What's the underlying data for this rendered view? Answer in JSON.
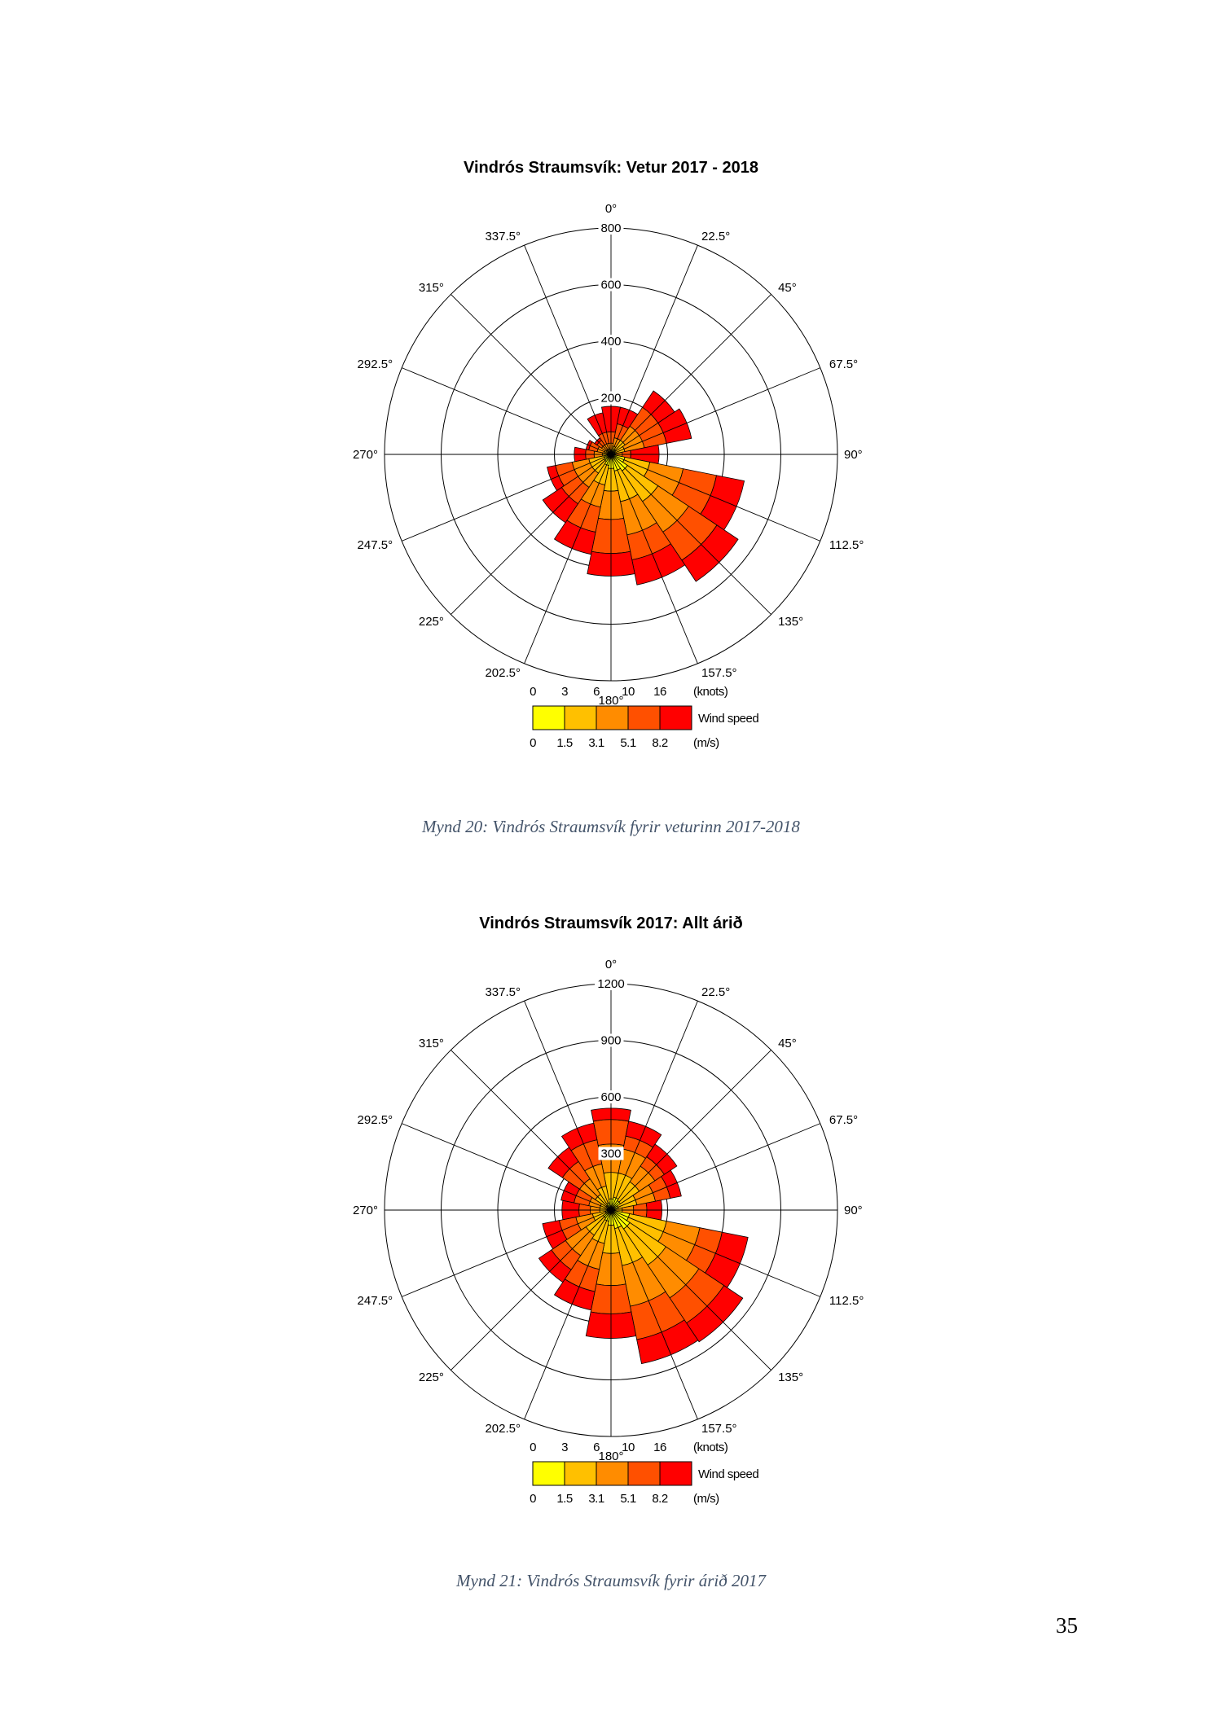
{
  "legend_colors": [
    "#ffff00",
    "#ffc000",
    "#ff8c00",
    "#ff5000",
    "#ff0000"
  ],
  "figures": [
    {
      "caption": "Mynd 20: Vindrós Straumsvík fyrir veturinn 2017-2018",
      "chart_data": {
        "type": "wind_rose",
        "title": "Vindrós Straumsvík: Vetur 2017 - 2018",
        "direction_labels": [
          "0°",
          "22.5°",
          "45°",
          "67.5°",
          "90°",
          "112.5°",
          "135°",
          "157.5°",
          "180°",
          "202.5°",
          "225°",
          "247.5°",
          "270°",
          "292.5°",
          "315°",
          "337.5°"
        ],
        "radial_max": 800,
        "radial_ticks": [
          200,
          400,
          600,
          800
        ],
        "radial_tick_labels": [
          "200",
          "400",
          "600",
          "800"
        ],
        "legend": {
          "title": "Wind speed",
          "knots_label": "(knots)",
          "knots": [
            "0",
            "3",
            "6",
            "10",
            "16"
          ],
          "ms_label": "(m/s)",
          "ms": [
            "0",
            "1.5",
            "3.1",
            "5.1",
            "8.2"
          ]
        },
        "sector_width_deg": 22.5,
        "directions": [
          0,
          22.5,
          45,
          67.5,
          90,
          112.5,
          135,
          157.5,
          180,
          202.5,
          225,
          247.5,
          270,
          292.5,
          315,
          337.5
        ],
        "cumulative_counts": [
          [
            5,
            15,
            40,
            80,
            170
          ],
          [
            10,
            30,
            60,
            110,
            170
          ],
          [
            20,
            60,
            120,
            200,
            270
          ],
          [
            15,
            50,
            120,
            200,
            290
          ],
          [
            5,
            15,
            40,
            70,
            170
          ],
          [
            50,
            140,
            260,
            380,
            480
          ],
          [
            70,
            200,
            330,
            450,
            540
          ],
          [
            60,
            170,
            290,
            380,
            470
          ],
          [
            50,
            130,
            230,
            350,
            430
          ],
          [
            40,
            110,
            190,
            280,
            360
          ],
          [
            30,
            80,
            140,
            210,
            290
          ],
          [
            25,
            80,
            140,
            200,
            230
          ],
          [
            10,
            30,
            60,
            90,
            130
          ],
          [
            10,
            25,
            50,
            80,
            90
          ],
          [
            10,
            20,
            40,
            60,
            70
          ],
          [
            5,
            20,
            40,
            80,
            150
          ]
        ]
      }
    },
    {
      "caption": "Mynd 21: Vindrós Straumsvík fyrir árið 2017",
      "chart_data": {
        "type": "wind_rose",
        "title": "Vindrós Straumsvík 2017: Allt árið",
        "direction_labels": [
          "0°",
          "22.5°",
          "45°",
          "67.5°",
          "90°",
          "112.5°",
          "135°",
          "157.5°",
          "180°",
          "202.5°",
          "225°",
          "247.5°",
          "270°",
          "292.5°",
          "315°",
          "337.5°"
        ],
        "radial_max": 1200,
        "radial_ticks": [
          300,
          600,
          900,
          1200
        ],
        "radial_tick_labels": [
          "300",
          "600",
          "900",
          "1200"
        ],
        "legend": {
          "title": "Wind speed",
          "knots_label": "(knots)",
          "knots": [
            "0",
            "3",
            "6",
            "10",
            "16"
          ],
          "ms_label": "(m/s)",
          "ms": [
            "0",
            "1.5",
            "3.1",
            "5.1",
            "8.2"
          ]
        },
        "sector_width_deg": 22.5,
        "directions": [
          0,
          22.5,
          45,
          67.5,
          90,
          112.5,
          135,
          157.5,
          180,
          202.5,
          225,
          247.5,
          270,
          292.5,
          315,
          337.5
        ],
        "cumulative_counts": [
          [
            60,
            200,
            350,
            480,
            540
          ],
          [
            70,
            200,
            330,
            400,
            480
          ],
          [
            60,
            180,
            280,
            340,
            420
          ],
          [
            40,
            140,
            240,
            320,
            380
          ],
          [
            20,
            60,
            120,
            190,
            270
          ],
          [
            100,
            300,
            480,
            600,
            740
          ],
          [
            120,
            350,
            560,
            720,
            840
          ],
          [
            100,
            300,
            520,
            700,
            830
          ],
          [
            80,
            230,
            400,
            550,
            680
          ],
          [
            60,
            180,
            320,
            440,
            540
          ],
          [
            50,
            160,
            290,
            380,
            460
          ],
          [
            30,
            100,
            190,
            280,
            370
          ],
          [
            20,
            60,
            110,
            170,
            260
          ],
          [
            20,
            60,
            120,
            200,
            270
          ],
          [
            30,
            100,
            200,
            310,
            400
          ],
          [
            40,
            130,
            250,
            380,
            470
          ]
        ]
      }
    }
  ],
  "page_number": "35"
}
